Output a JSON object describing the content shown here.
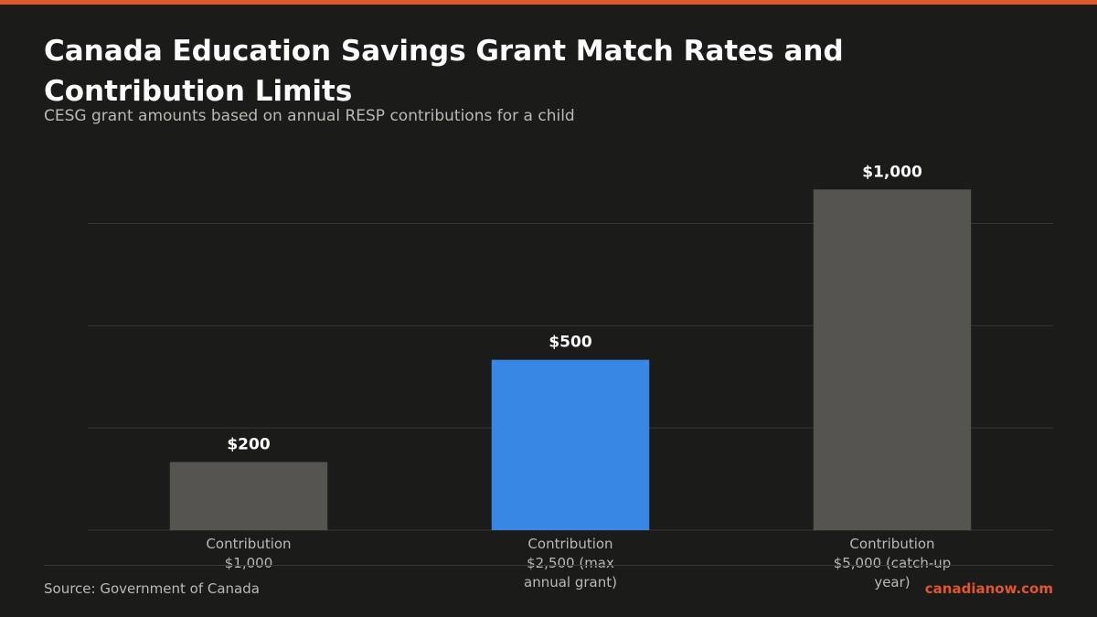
{
  "header": {
    "title": "Canada Education Savings Grant Match Rates and Contribution Limits",
    "subtitle": "CESG grant amounts based on annual RESP contributions for a child"
  },
  "footer": {
    "source": "Source: Government of Canada",
    "brand": "canadianow.com"
  },
  "colors": {
    "background": "#1b1b1a",
    "accent": "#e0572a",
    "bar_default": "#55544e",
    "bar_highlight": "#3987e5",
    "gridline": "#353533",
    "value_label": "#ffffff",
    "category_label": "#bdb9b0"
  },
  "chart_data": {
    "type": "bar",
    "title": "Canada Education Savings Grant Match Rates and Contribution Limits",
    "subtitle": "CESG grant amounts based on annual RESP contributions for a child",
    "categories": [
      [
        "Contribution",
        "$1,000"
      ],
      [
        "Contribution",
        "$2,500 (max",
        "annual grant)"
      ],
      [
        "Contribution",
        "$5,000 (catch-up",
        "year)"
      ]
    ],
    "values": [
      200,
      500,
      1000
    ],
    "value_labels": [
      "$200",
      "$500",
      "$1,000"
    ],
    "highlight_index": 1,
    "xlabel": "",
    "ylabel": "",
    "ylim": [
      0,
      1100
    ],
    "gridlines": [
      300,
      600,
      900
    ],
    "grid": true,
    "legend": "none"
  }
}
